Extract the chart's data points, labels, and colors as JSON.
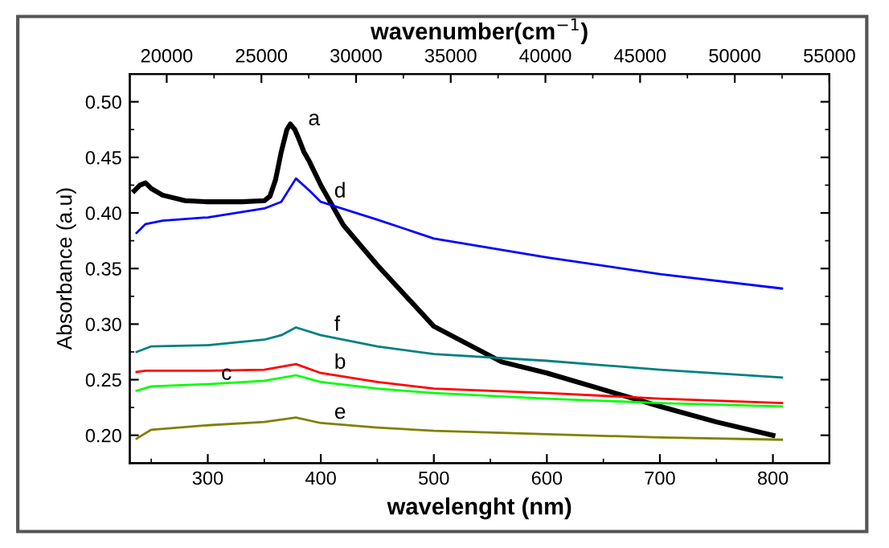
{
  "chart_data": {
    "type": "line",
    "xlabel": "wavelenght (nm)",
    "ylabel": "Absorbance (a.u)",
    "x2label": "wavenumber(cm$^{−1}$)",
    "xlim": [
      231,
      850
    ],
    "xticks": [
      300,
      400,
      500,
      600,
      700,
      800
    ],
    "ylim": [
      0.175,
      0.525
    ],
    "yticks": [
      {
        "value": 0.2,
        "label": "0.20"
      },
      {
        "value": 0.25,
        "label": "0.25"
      },
      {
        "value": 0.3,
        "label": "0.30"
      },
      {
        "value": 0.35,
        "label": "0.35"
      },
      {
        "value": 0.4,
        "label": "0.40"
      },
      {
        "value": 0.45,
        "label": "0.45"
      },
      {
        "value": 0.5,
        "label": "0.50"
      }
    ],
    "x2lim": [
      18050,
      55000
    ],
    "x2ticks": [
      20000,
      25000,
      30000,
      35000,
      40000,
      45000,
      50000,
      55000
    ],
    "grid": false,
    "legend": false,
    "marker": "none",
    "line_style": "solid",
    "series": [
      {
        "color": "#000000",
        "x": [
          235,
          240,
          245,
          250,
          260,
          280,
          300,
          330,
          350,
          355,
          360,
          365,
          370,
          373,
          377,
          380,
          385,
          390,
          400,
          420,
          450,
          500,
          560,
          600,
          680,
          700,
          750,
          800
        ],
        "values": [
          0.42,
          0.425,
          0.427,
          0.422,
          0.416,
          0.411,
          0.41,
          0.41,
          0.411,
          0.415,
          0.43,
          0.455,
          0.475,
          0.48,
          0.475,
          0.468,
          0.455,
          0.446,
          0.425,
          0.389,
          0.353,
          0.298,
          0.266,
          0.256,
          0.232,
          0.226,
          0.212,
          0.2
        ]
      },
      {
        "color": "#0000ff",
        "x": [
          237,
          245,
          260,
          300,
          350,
          365,
          378,
          390,
          400,
          450,
          500,
          600,
          700,
          808
        ],
        "values": [
          0.382,
          0.39,
          0.393,
          0.396,
          0.404,
          0.41,
          0.431,
          0.42,
          0.41,
          0.394,
          0.377,
          0.36,
          0.345,
          0.332
        ]
      },
      {
        "color": "#008080",
        "x": [
          237,
          250,
          300,
          350,
          365,
          378,
          400,
          450,
          500,
          600,
          700,
          808
        ],
        "values": [
          0.275,
          0.28,
          0.281,
          0.286,
          0.29,
          0.297,
          0.29,
          0.28,
          0.273,
          0.267,
          0.259,
          0.252
        ]
      },
      {
        "color": "#ff0000",
        "x": [
          237,
          245,
          300,
          350,
          378,
          400,
          450,
          500,
          600,
          700,
          808
        ],
        "values": [
          0.257,
          0.258,
          0.258,
          0.259,
          0.264,
          0.256,
          0.248,
          0.242,
          0.238,
          0.233,
          0.229
        ]
      },
      {
        "color": "#00ff00",
        "x": [
          237,
          250,
          300,
          350,
          378,
          400,
          450,
          500,
          600,
          700,
          808
        ],
        "values": [
          0.24,
          0.244,
          0.246,
          0.249,
          0.254,
          0.248,
          0.242,
          0.238,
          0.233,
          0.229,
          0.226
        ]
      },
      {
        "color": "#808000",
        "x": [
          237,
          250,
          300,
          350,
          378,
          400,
          450,
          500,
          600,
          700,
          808
        ],
        "values": [
          0.197,
          0.205,
          0.209,
          0.212,
          0.216,
          0.211,
          0.207,
          0.204,
          0.201,
          0.198,
          0.196
        ]
      }
    ],
    "annotations": [
      {
        "text": "a",
        "x": 377,
        "y": 0.475
      },
      {
        "text": "d",
        "x": 400,
        "y": 0.41
      },
      {
        "text": "f",
        "x": 400,
        "y": 0.29
      },
      {
        "text": "b",
        "x": 400,
        "y": 0.256
      },
      {
        "text": "c",
        "x": 300,
        "y": 0.246
      },
      {
        "text": "e",
        "x": 400,
        "y": 0.211
      }
    ]
  }
}
